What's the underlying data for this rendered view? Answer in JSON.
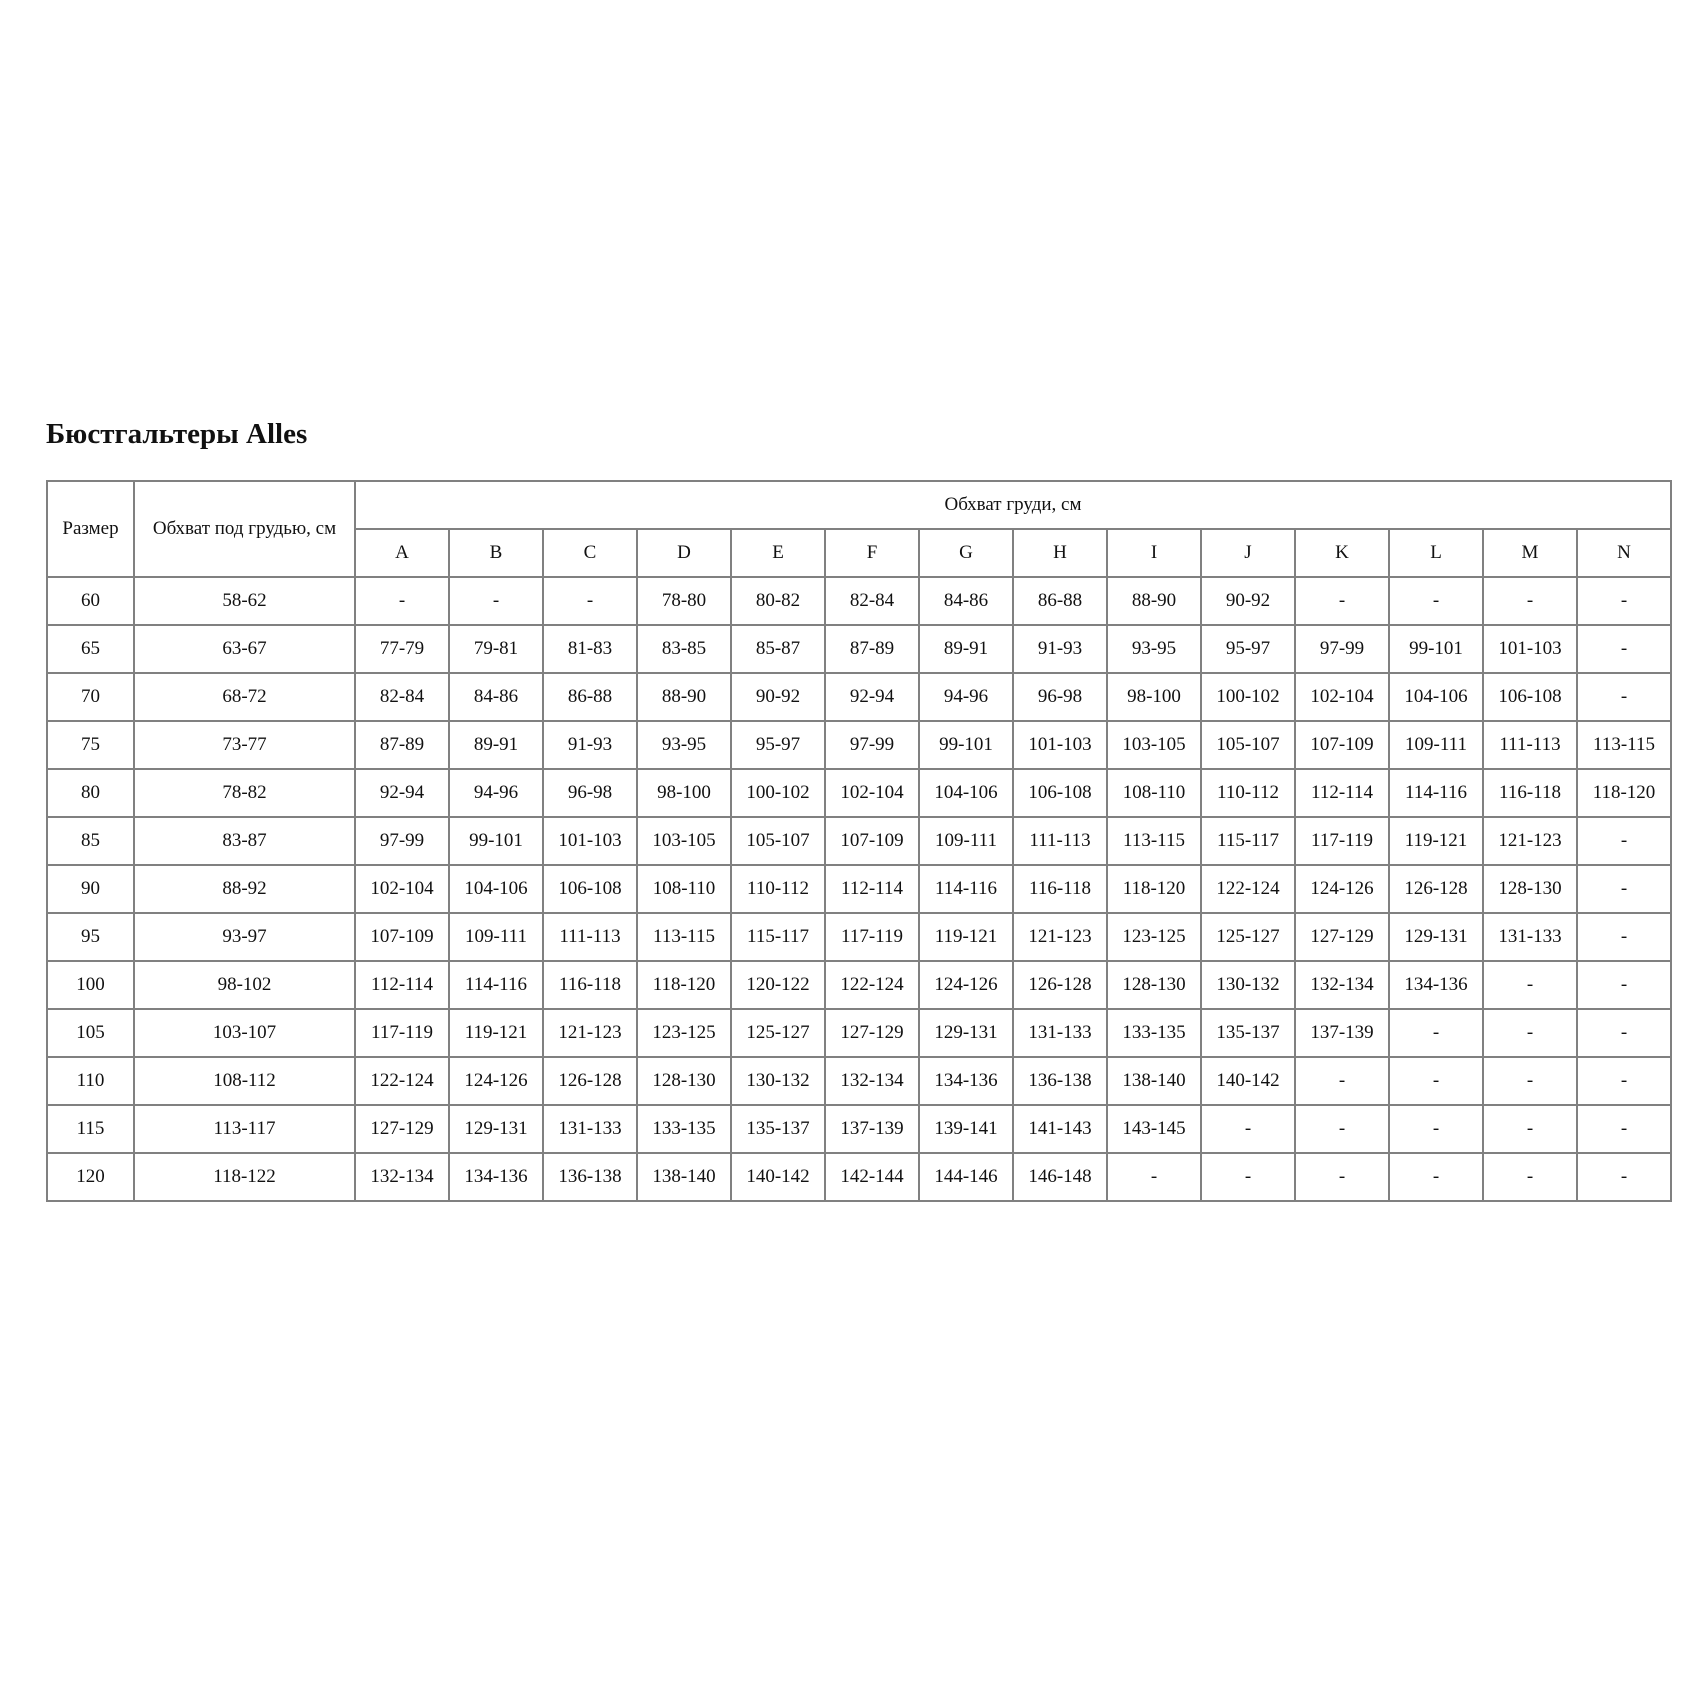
{
  "title": "Бюстгальтеры Alles",
  "table": {
    "header_size": "Размер",
    "header_underbust": "Обхват под грудью, см",
    "header_bust": "Обхват груди, см",
    "cups": [
      "A",
      "B",
      "C",
      "D",
      "E",
      "F",
      "G",
      "H",
      "I",
      "J",
      "K",
      "L",
      "M",
      "N"
    ],
    "rows": [
      {
        "size": "60",
        "underbust": "58-62",
        "values": [
          "-",
          "-",
          "-",
          "78-80",
          "80-82",
          "82-84",
          "84-86",
          "86-88",
          "88-90",
          "90-92",
          "-",
          "-",
          "-",
          "-"
        ]
      },
      {
        "size": "65",
        "underbust": "63-67",
        "values": [
          "77-79",
          "79-81",
          "81-83",
          "83-85",
          "85-87",
          "87-89",
          "89-91",
          "91-93",
          "93-95",
          "95-97",
          "97-99",
          "99-101",
          "101-103",
          "-"
        ]
      },
      {
        "size": "70",
        "underbust": "68-72",
        "values": [
          "82-84",
          "84-86",
          "86-88",
          "88-90",
          "90-92",
          "92-94",
          "94-96",
          "96-98",
          "98-100",
          "100-102",
          "102-104",
          "104-106",
          "106-108",
          "-"
        ]
      },
      {
        "size": "75",
        "underbust": "73-77",
        "values": [
          "87-89",
          "89-91",
          "91-93",
          "93-95",
          "95-97",
          "97-99",
          "99-101",
          "101-103",
          "103-105",
          "105-107",
          "107-109",
          "109-111",
          "111-113",
          "113-115"
        ]
      },
      {
        "size": "80",
        "underbust": "78-82",
        "values": [
          "92-94",
          "94-96",
          "96-98",
          "98-100",
          "100-102",
          "102-104",
          "104-106",
          "106-108",
          "108-110",
          "110-112",
          "112-114",
          "114-116",
          "116-118",
          "118-120"
        ]
      },
      {
        "size": "85",
        "underbust": "83-87",
        "values": [
          "97-99",
          "99-101",
          "101-103",
          "103-105",
          "105-107",
          "107-109",
          "109-111",
          "111-113",
          "113-115",
          "115-117",
          "117-119",
          "119-121",
          "121-123",
          "-"
        ]
      },
      {
        "size": "90",
        "underbust": "88-92",
        "values": [
          "102-104",
          "104-106",
          "106-108",
          "108-110",
          "110-112",
          "112-114",
          "114-116",
          "116-118",
          "118-120",
          "122-124",
          "124-126",
          "126-128",
          "128-130",
          "-"
        ]
      },
      {
        "size": "95",
        "underbust": "93-97",
        "values": [
          "107-109",
          "109-111",
          "111-113",
          "113-115",
          "115-117",
          "117-119",
          "119-121",
          "121-123",
          "123-125",
          "125-127",
          "127-129",
          "129-131",
          "131-133",
          "-"
        ]
      },
      {
        "size": "100",
        "underbust": "98-102",
        "values": [
          "112-114",
          "114-116",
          "116-118",
          "118-120",
          "120-122",
          "122-124",
          "124-126",
          "126-128",
          "128-130",
          "130-132",
          "132-134",
          "134-136",
          "-",
          "-"
        ]
      },
      {
        "size": "105",
        "underbust": "103-107",
        "values": [
          "117-119",
          "119-121",
          "121-123",
          "123-125",
          "125-127",
          "127-129",
          "129-131",
          "131-133",
          "133-135",
          "135-137",
          "137-139",
          "-",
          "-",
          "-"
        ]
      },
      {
        "size": "110",
        "underbust": "108-112",
        "values": [
          "122-124",
          "124-126",
          "126-128",
          "128-130",
          "130-132",
          "132-134",
          "134-136",
          "136-138",
          "138-140",
          "140-142",
          "-",
          "-",
          "-",
          "-"
        ]
      },
      {
        "size": "115",
        "underbust": "113-117",
        "values": [
          "127-129",
          "129-131",
          "131-133",
          "133-135",
          "135-137",
          "137-139",
          "139-141",
          "141-143",
          "143-145",
          "-",
          "-",
          "-",
          "-",
          "-"
        ]
      },
      {
        "size": "120",
        "underbust": "118-122",
        "values": [
          "132-134",
          "134-136",
          "136-138",
          "138-140",
          "140-142",
          "142-144",
          "144-146",
          "146-148",
          "-",
          "-",
          "-",
          "-",
          "-",
          "-"
        ]
      }
    ]
  }
}
